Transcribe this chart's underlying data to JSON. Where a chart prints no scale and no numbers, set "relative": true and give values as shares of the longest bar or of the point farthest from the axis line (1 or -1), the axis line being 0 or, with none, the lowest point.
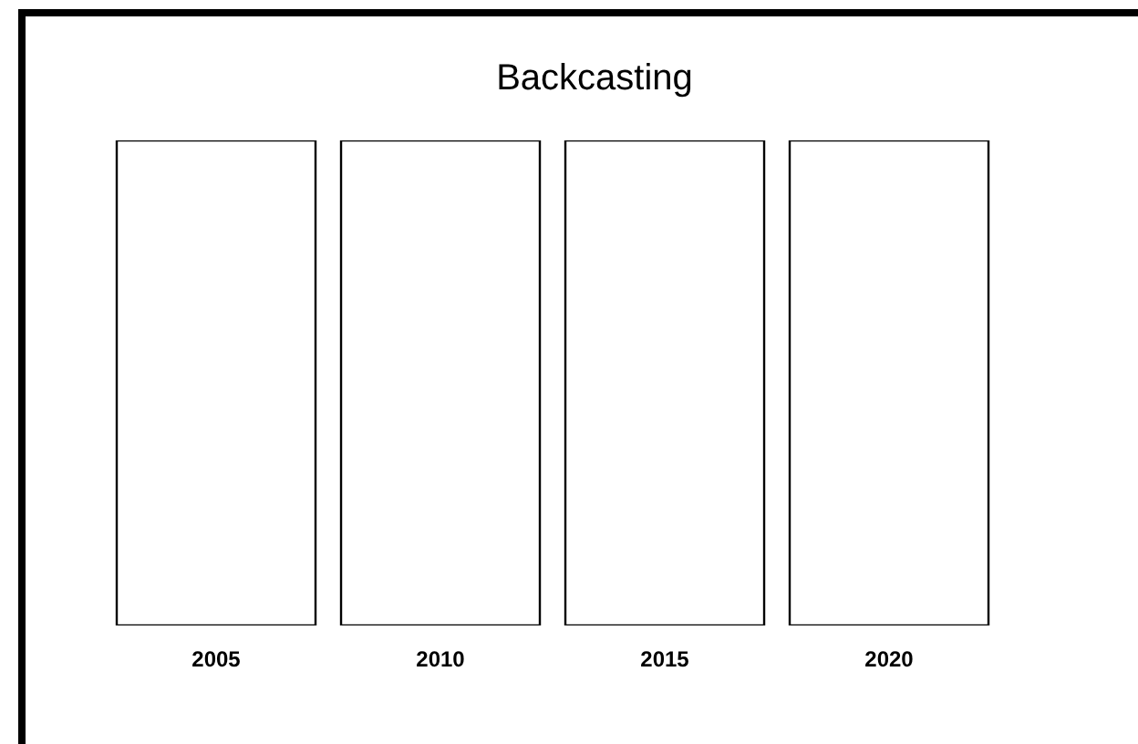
{
  "chart_data": {
    "type": "bar",
    "title": "Backcasting",
    "categories": [
      "2005",
      "2010",
      "2015",
      "2020"
    ],
    "values": [
      1,
      1,
      1,
      1
    ],
    "color": "#ffffff",
    "relative": true,
    "grid": false
  }
}
